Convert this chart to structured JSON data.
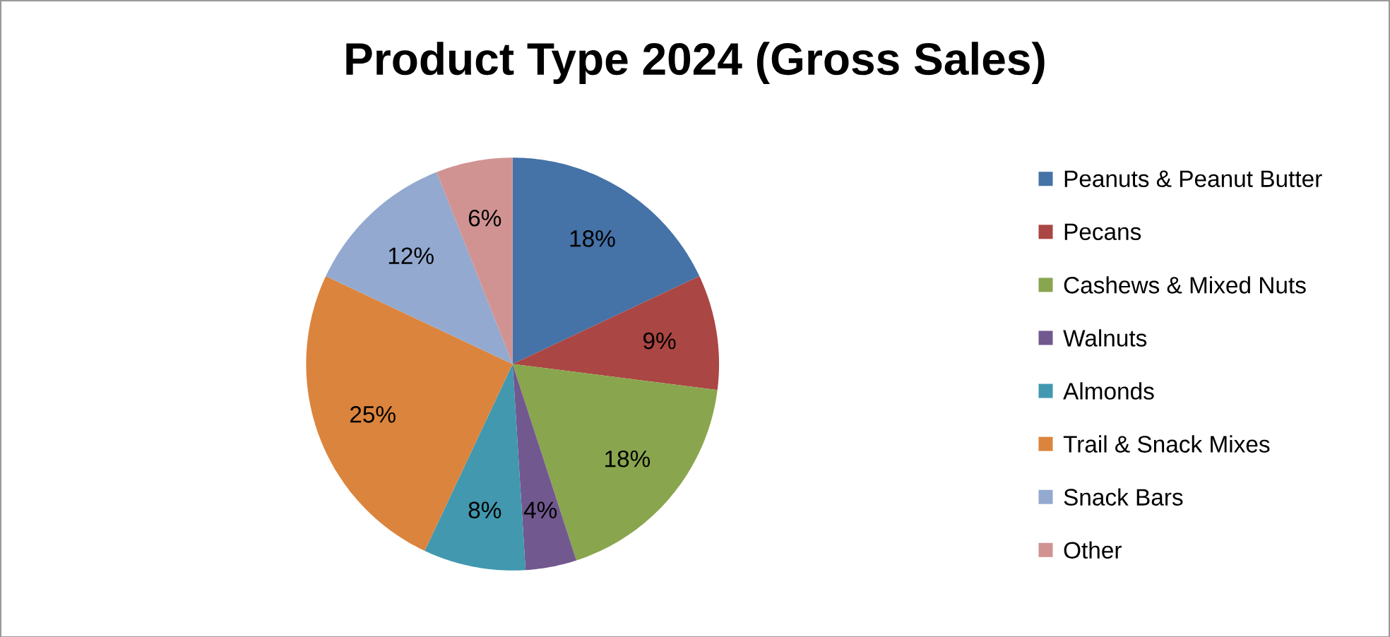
{
  "chart_data": {
    "type": "pie",
    "title": "Product Type 2024 (Gross Sales)",
    "categories": [
      "Peanuts & Peanut Butter",
      "Pecans",
      "Cashews & Mixed Nuts",
      "Walnuts",
      "Almonds",
      "Trail & Snack Mixes",
      "Snack Bars",
      "Other"
    ],
    "values": [
      18,
      9,
      18,
      4,
      8,
      25,
      12,
      6
    ],
    "value_labels": [
      "18%",
      "9%",
      "18%",
      "4%",
      "8%",
      "25%",
      "12%",
      "6%"
    ],
    "colors": [
      "#4572a7",
      "#aa4643",
      "#89a54e",
      "#71588f",
      "#4198af",
      "#db843d",
      "#93a9cf",
      "#d19392"
    ],
    "legend": "right"
  }
}
